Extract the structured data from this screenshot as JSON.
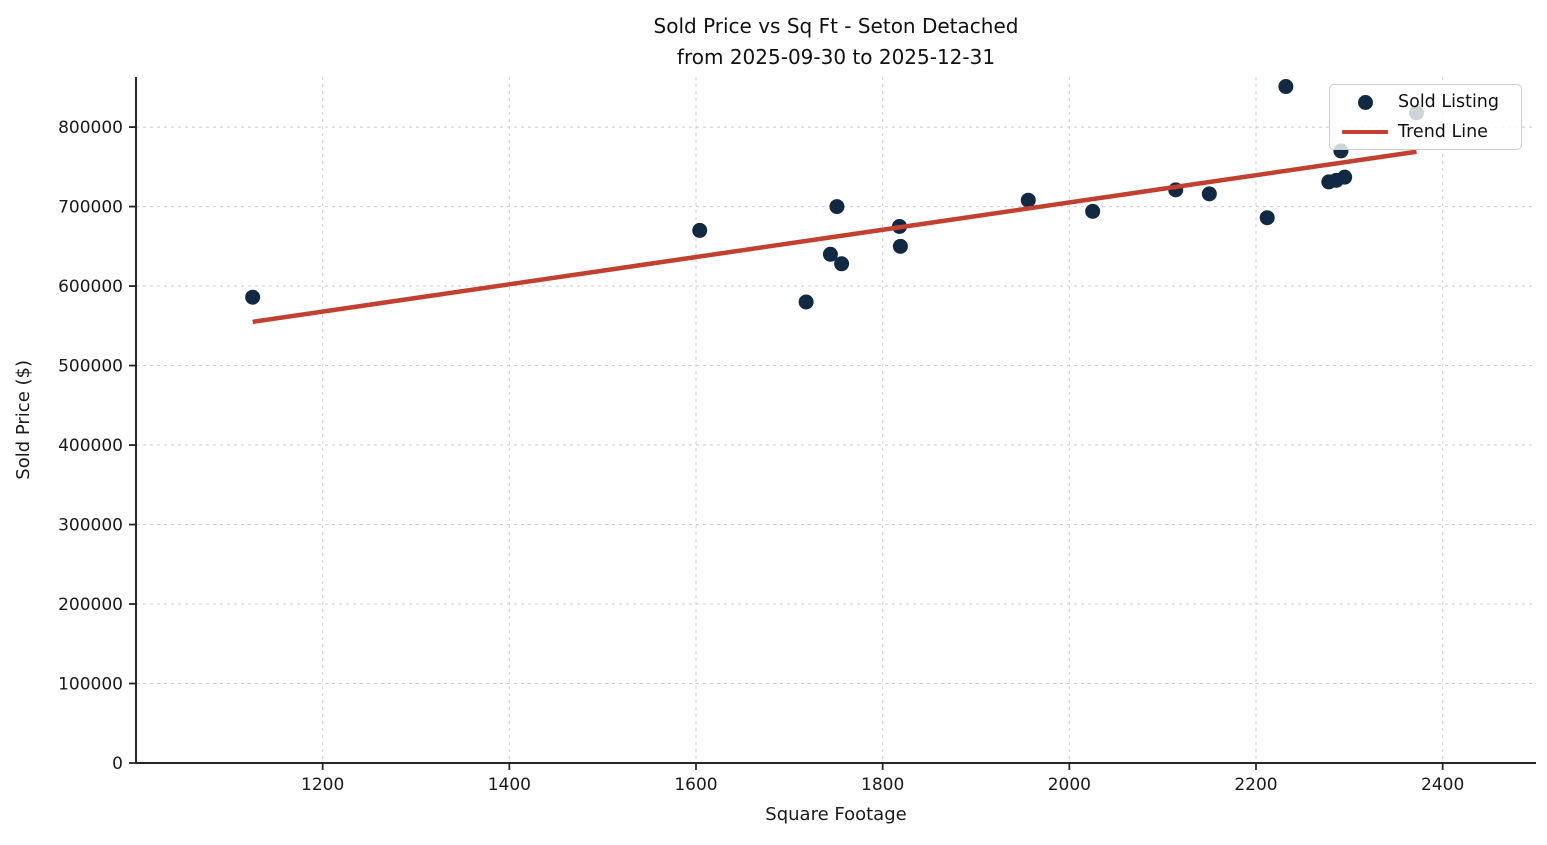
{
  "chart_data": {
    "type": "scatter",
    "title": "Sold Price vs Sq Ft - Seton Detached",
    "subtitle": "from 2025-09-30 to 2025-12-31",
    "xlabel": "Square Footage",
    "ylabel": "Sold Price ($)",
    "xlim": [
      1000,
      2500
    ],
    "ylim": [
      0,
      863000
    ],
    "x_ticks": [
      1200,
      1400,
      1600,
      1800,
      2000,
      2200,
      2400
    ],
    "y_ticks": [
      0,
      100000,
      200000,
      300000,
      400000,
      500000,
      600000,
      700000,
      800000
    ],
    "grid": true,
    "grid_style": "dashed",
    "legend": {
      "position": "upper right",
      "entries": [
        {
          "label": "Sold Listing",
          "type": "marker"
        },
        {
          "label": "Trend Line",
          "type": "line"
        }
      ]
    },
    "series": [
      {
        "name": "Sold Listing",
        "type": "scatter",
        "color": "#122943",
        "marker_radius": 7.5,
        "points": [
          [
            1125,
            586000
          ],
          [
            1604,
            670000
          ],
          [
            1718,
            580000
          ],
          [
            1744,
            640000
          ],
          [
            1751,
            700000
          ],
          [
            1756,
            628000
          ],
          [
            1818,
            675000
          ],
          [
            1819,
            650000
          ],
          [
            1956,
            708000
          ],
          [
            2025,
            694000
          ],
          [
            2114,
            721000
          ],
          [
            2150,
            716000
          ],
          [
            2212,
            686000
          ],
          [
            2232,
            851000
          ],
          [
            2278,
            731000
          ],
          [
            2286,
            733000
          ],
          [
            2295,
            737000
          ],
          [
            2291,
            770000
          ],
          [
            2372,
            818000
          ]
        ]
      },
      {
        "name": "Trend Line",
        "type": "line",
        "color": "#c2402f",
        "line_width": 4.5,
        "points": [
          [
            1125,
            555000
          ],
          [
            2372,
            769000
          ]
        ]
      }
    ],
    "colors": {
      "point": "#122943",
      "trend": "#c2402f",
      "grid": "#cccccc",
      "spine": "#262626",
      "text": "#1a1a1a"
    }
  }
}
